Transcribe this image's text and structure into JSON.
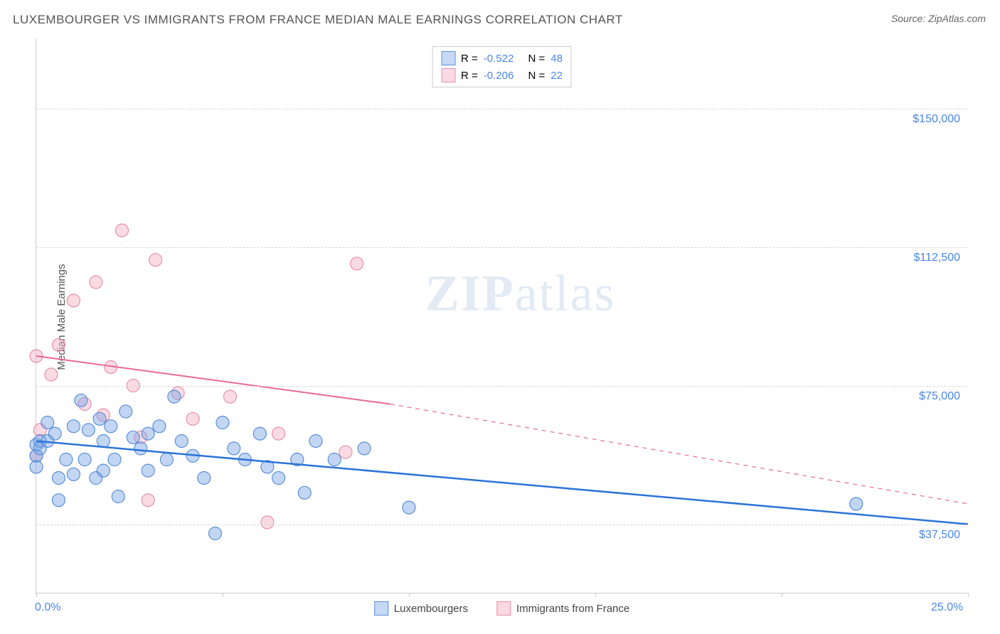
{
  "title": "LUXEMBOURGER VS IMMIGRANTS FROM FRANCE MEDIAN MALE EARNINGS CORRELATION CHART",
  "source": "Source: ZipAtlas.com",
  "ylabel": "Median Male Earnings",
  "watermark_zip": "ZIP",
  "watermark_atlas": "atlas",
  "chart": {
    "type": "scatter",
    "background_color": "#ffffff",
    "grid_color": "#d5d5d5",
    "axis_color": "#cccccc",
    "xlim": [
      0,
      25
    ],
    "ylim": [
      18750,
      168750
    ],
    "ytick_values": [
      37500,
      75000,
      112500,
      150000
    ],
    "ytick_labels": [
      "$37,500",
      "$75,000",
      "$112,500",
      "$150,000"
    ],
    "xtick_values": [
      0,
      25
    ],
    "xtick_labels": [
      "0.0%",
      "25.0%"
    ],
    "xtick_marks": [
      0,
      5,
      10,
      15,
      20,
      25
    ],
    "marker_radius": 9,
    "label_fontsize": 15,
    "tick_fontsize": 16,
    "tick_color": "#4a86e8"
  },
  "stats": {
    "rows": [
      {
        "color": "blue",
        "r_label": "R =",
        "r_val": "-0.522",
        "n_label": "N =",
        "n_val": "48"
      },
      {
        "color": "pink",
        "r_label": "R =",
        "r_val": "-0.206",
        "n_label": "N =",
        "n_val": "22"
      }
    ]
  },
  "colors": {
    "blue_fill": "rgba(120,165,230,0.45)",
    "blue_stroke": "#5b8fd6",
    "blue_trend": "#2b74d8",
    "pink_fill": "rgba(245,175,195,0.45)",
    "pink_stroke": "#e88fab",
    "pink_trend": "#e86a92"
  },
  "legend": {
    "items": [
      {
        "color": "blue",
        "label": "Luxembourgers"
      },
      {
        "color": "pink",
        "label": "Immigrants from France"
      }
    ]
  },
  "series": {
    "blue": {
      "points": [
        [
          0.0,
          59000
        ],
        [
          0.0,
          56000
        ],
        [
          0.0,
          53000
        ],
        [
          0.1,
          60000
        ],
        [
          0.1,
          58000
        ],
        [
          0.3,
          65000
        ],
        [
          0.3,
          60000
        ],
        [
          0.5,
          62000
        ],
        [
          0.6,
          50000
        ],
        [
          0.6,
          44000
        ],
        [
          0.8,
          55000
        ],
        [
          1.0,
          64000
        ],
        [
          1.0,
          51000
        ],
        [
          1.2,
          71000
        ],
        [
          1.3,
          55000
        ],
        [
          1.4,
          63000
        ],
        [
          1.6,
          50000
        ],
        [
          1.7,
          66000
        ],
        [
          1.8,
          52000
        ],
        [
          1.8,
          60000
        ],
        [
          2.0,
          64000
        ],
        [
          2.1,
          55000
        ],
        [
          2.2,
          45000
        ],
        [
          2.4,
          68000
        ],
        [
          2.6,
          61000
        ],
        [
          2.8,
          58000
        ],
        [
          3.0,
          62000
        ],
        [
          3.0,
          52000
        ],
        [
          3.3,
          64000
        ],
        [
          3.5,
          55000
        ],
        [
          3.7,
          72000
        ],
        [
          3.9,
          60000
        ],
        [
          4.2,
          56000
        ],
        [
          4.5,
          50000
        ],
        [
          4.8,
          35000
        ],
        [
          5.0,
          65000
        ],
        [
          5.3,
          58000
        ],
        [
          5.6,
          55000
        ],
        [
          6.0,
          62000
        ],
        [
          6.2,
          53000
        ],
        [
          6.5,
          50000
        ],
        [
          7.0,
          55000
        ],
        [
          7.2,
          46000
        ],
        [
          7.5,
          60000
        ],
        [
          8.0,
          55000
        ],
        [
          8.8,
          58000
        ],
        [
          10.0,
          42000
        ],
        [
          22.0,
          43000
        ]
      ],
      "trend": {
        "x1": 0,
        "y1": 60000,
        "x2": 25,
        "y2": 37500
      }
    },
    "pink": {
      "points": [
        [
          0.0,
          56000
        ],
        [
          0.0,
          83000
        ],
        [
          0.1,
          63000
        ],
        [
          0.4,
          78000
        ],
        [
          0.6,
          86000
        ],
        [
          1.0,
          98000
        ],
        [
          1.3,
          70000
        ],
        [
          1.6,
          103000
        ],
        [
          1.8,
          67000
        ],
        [
          2.0,
          80000
        ],
        [
          2.3,
          117000
        ],
        [
          2.6,
          75000
        ],
        [
          2.8,
          61000
        ],
        [
          3.0,
          44000
        ],
        [
          3.2,
          109000
        ],
        [
          3.8,
          73000
        ],
        [
          4.2,
          66000
        ],
        [
          5.2,
          72000
        ],
        [
          6.2,
          38000
        ],
        [
          6.5,
          62000
        ],
        [
          8.3,
          57000
        ],
        [
          8.6,
          108000
        ]
      ],
      "trend_solid": {
        "x1": 0,
        "y1": 83000,
        "x2": 9.5,
        "y2": 70000
      },
      "trend_dash": {
        "x1": 9.5,
        "y1": 70000,
        "x2": 25,
        "y2": 43000
      }
    }
  }
}
